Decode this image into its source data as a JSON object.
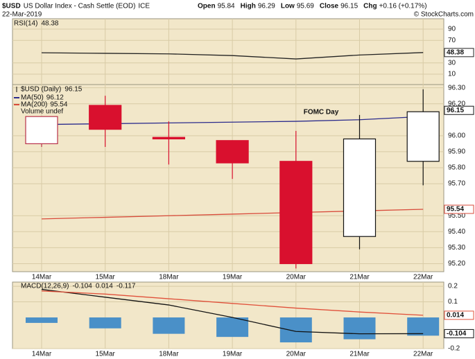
{
  "header": {
    "symbol": "$USD",
    "name": "US Dollar Index - Cash Settle (EOD)",
    "exchange": "ICE",
    "date": "22-Mar-2019",
    "open_label": "Open",
    "high_label": "High",
    "low_label": "Low",
    "close_label": "Close",
    "chg_label": "Chg",
    "chg": "+0.16 (+0.17%)",
    "credit": "© StockCharts.com"
  },
  "chart_data": [
    {
      "type": "line",
      "title": "RSI(14)",
      "categories": [
        "14Mar",
        "15Mar",
        "18Mar",
        "19Mar",
        "20Mar",
        "21Mar",
        "22Mar"
      ],
      "series": [
        {
          "color": "#222222",
          "values": [
            48,
            47,
            46,
            43,
            37,
            44,
            48.38
          ]
        }
      ],
      "ylim": [
        -8.5,
        108.5
      ],
      "yticks": [
        10,
        30,
        70,
        90
      ],
      "grid": true
    },
    {
      "type": "candlestick",
      "title": "$USD (Daily)",
      "categories": [
        "14Mar",
        "15Mar",
        "18Mar",
        "19Mar",
        "20Mar",
        "21Mar",
        "22Mar"
      ],
      "open": [
        95.95,
        96.19,
        95.99,
        95.97,
        95.84,
        95.37,
        95.84
      ],
      "high": [
        96.12,
        96.25,
        96.09,
        95.97,
        96.03,
        96.13,
        96.29
      ],
      "low": [
        95.93,
        95.93,
        95.82,
        95.73,
        95.17,
        95.29,
        95.69
      ],
      "close": [
        96.12,
        96.04,
        95.98,
        95.83,
        95.2,
        95.98,
        96.15
      ],
      "colors": [
        "#b83048",
        "#d9102e",
        "#d9102e",
        "#d9102e",
        "#d9102e",
        "#111111",
        "#111111"
      ],
      "series": [
        {
          "name": "MA(50)",
          "color": "#2a2a8c",
          "values": [
            96.07,
            96.075,
            96.08,
            96.085,
            96.09,
            96.1,
            96.12
          ]
        },
        {
          "name": "MA(200)",
          "color": "#d84a3a",
          "values": [
            95.48,
            95.49,
            95.5,
            95.51,
            95.52,
            95.53,
            95.54
          ]
        }
      ],
      "volume_label": "Volume undef",
      "annotation": "FOMC Day",
      "ylim": [
        95.15,
        96.32
      ],
      "yticks": [
        {
          "value": 95.2,
          "label": "95.20"
        },
        {
          "value": 95.3,
          "label": "95.30"
        },
        {
          "value": 95.4,
          "label": "95.40"
        },
        {
          "value": 95.5,
          "label": "95.50"
        },
        {
          "value": 95.7,
          "label": "95.70"
        },
        {
          "value": 95.8,
          "label": "95.80"
        },
        {
          "value": 95.9,
          "label": "95.90"
        },
        {
          "value": 96,
          "label": "96.00"
        },
        {
          "value": 96.2,
          "label": "96.20"
        },
        {
          "value": 96.3,
          "label": "96.30"
        }
      ],
      "grid": true
    },
    {
      "type": "macd",
      "title": "MACD(12,26,9)",
      "categories": [
        "14Mar",
        "15Mar",
        "18Mar",
        "19Mar",
        "20Mar",
        "21Mar",
        "22Mar"
      ],
      "series": [
        {
          "color": "#111111",
          "values": [
            0.18,
            0.13,
            0.08,
            0.0,
            -0.09,
            -0.105,
            -0.104
          ]
        },
        {
          "color": "#e0503a",
          "values": [
            0.17,
            0.15,
            0.12,
            0.09,
            0.06,
            0.035,
            0.014
          ]
        },
        {
          "color": "#4a90c8",
          "values": [
            -0.035,
            -0.07,
            -0.105,
            -0.125,
            -0.16,
            -0.14,
            -0.117
          ]
        }
      ],
      "ylim": [
        -0.2,
        0.227
      ],
      "yticks": [
        -0.2,
        0.1,
        0.2
      ],
      "grid": true
    }
  ]
}
